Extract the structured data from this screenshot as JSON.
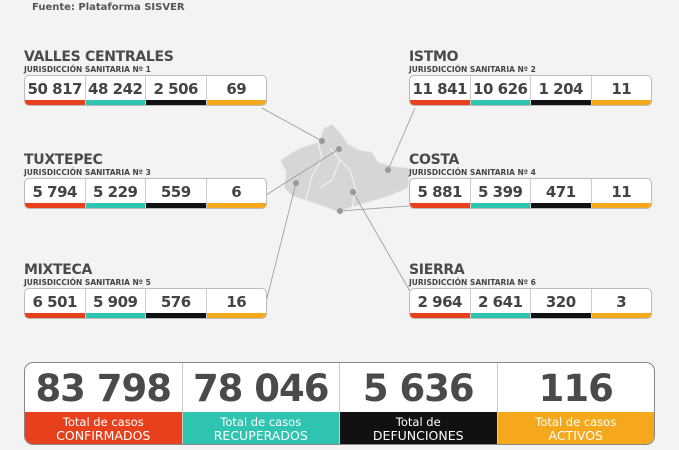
{
  "source": "Fuente: Plataforma SISVER",
  "colors": {
    "confirmados": "#e8401c",
    "recuperados": "#2ec4b0",
    "defunciones": "#111111",
    "activos": "#f5a81c"
  },
  "regions": [
    {
      "name": "VALLES CENTRALES",
      "sub": "JURISDICCIÓN SANITARIA Nº 1",
      "values": [
        "50 817",
        "48 242",
        "2 506",
        "69"
      ]
    },
    {
      "name": "ISTMO",
      "sub": "JURISDICCIÓN SANITARIA Nº 2",
      "values": [
        "11 841",
        "10 626",
        "1 204",
        "11"
      ]
    },
    {
      "name": "TUXTEPEC",
      "sub": "JURISDICCIÓN SANITARIA Nº 3",
      "values": [
        "5 794",
        "5 229",
        "559",
        "6"
      ]
    },
    {
      "name": "COSTA",
      "sub": "JURISDICCIÓN SANITARIA Nº 4",
      "values": [
        "5 881",
        "5 399",
        "471",
        "11"
      ]
    },
    {
      "name": "MIXTECA",
      "sub": "JURISDICCIÓN SANITARIA Nº 5",
      "values": [
        "6 501",
        "5 909",
        "576",
        "16"
      ]
    },
    {
      "name": "SIERRA",
      "sub": "JURISDICCIÓN SANITARIA Nº 6",
      "values": [
        "2 964",
        "2 641",
        "320",
        "3"
      ]
    }
  ],
  "totals": [
    {
      "value": "83 798",
      "l1": "Total de casos",
      "l2": "CONFIRMADOS"
    },
    {
      "value": "78 046",
      "l1": "Total de casos",
      "l2": "RECUPERADOS"
    },
    {
      "value": "5 636",
      "l1": "Total de",
      "l2": "DEFUNCIONES"
    },
    {
      "value": "116",
      "l1": "Total de casos",
      "l2": "ACTIVOS"
    }
  ]
}
